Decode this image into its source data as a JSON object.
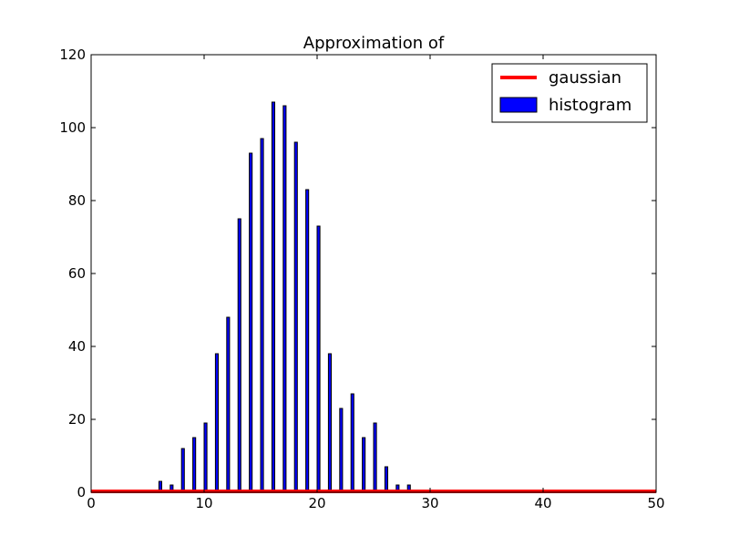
{
  "chart_data": {
    "type": "bar",
    "title": "Approximation of",
    "xlabel": "",
    "ylabel": "",
    "xlim": [
      0,
      50
    ],
    "ylim": [
      0,
      120
    ],
    "xticks": [
      0,
      10,
      20,
      30,
      40,
      50
    ],
    "yticks": [
      0,
      20,
      40,
      60,
      80,
      100,
      120
    ],
    "grid": false,
    "legend_position": "top-right",
    "series": [
      {
        "name": "histogram",
        "kind": "bar",
        "color": "#0000ff",
        "edge_color": "#000000",
        "bar_width": 0.25,
        "x": [
          6,
          7,
          8,
          9,
          10,
          11,
          12,
          13,
          14,
          15,
          16,
          17,
          18,
          19,
          20,
          21,
          22,
          23,
          24,
          25,
          26,
          27,
          28
        ],
        "values": [
          3,
          2,
          12,
          15,
          19,
          38,
          48,
          75,
          93,
          97,
          107,
          106,
          96,
          83,
          73,
          38,
          23,
          27,
          15,
          19,
          7,
          2,
          2
        ]
      },
      {
        "name": "gaussian",
        "kind": "line",
        "color": "#ff0000",
        "x": [
          0,
          50
        ],
        "values": [
          0,
          0
        ]
      }
    ],
    "legend": [
      {
        "label": "gaussian",
        "kind": "line",
        "color": "#ff0000"
      },
      {
        "label": "histogram",
        "kind": "patch",
        "color": "#0000ff"
      }
    ]
  }
}
